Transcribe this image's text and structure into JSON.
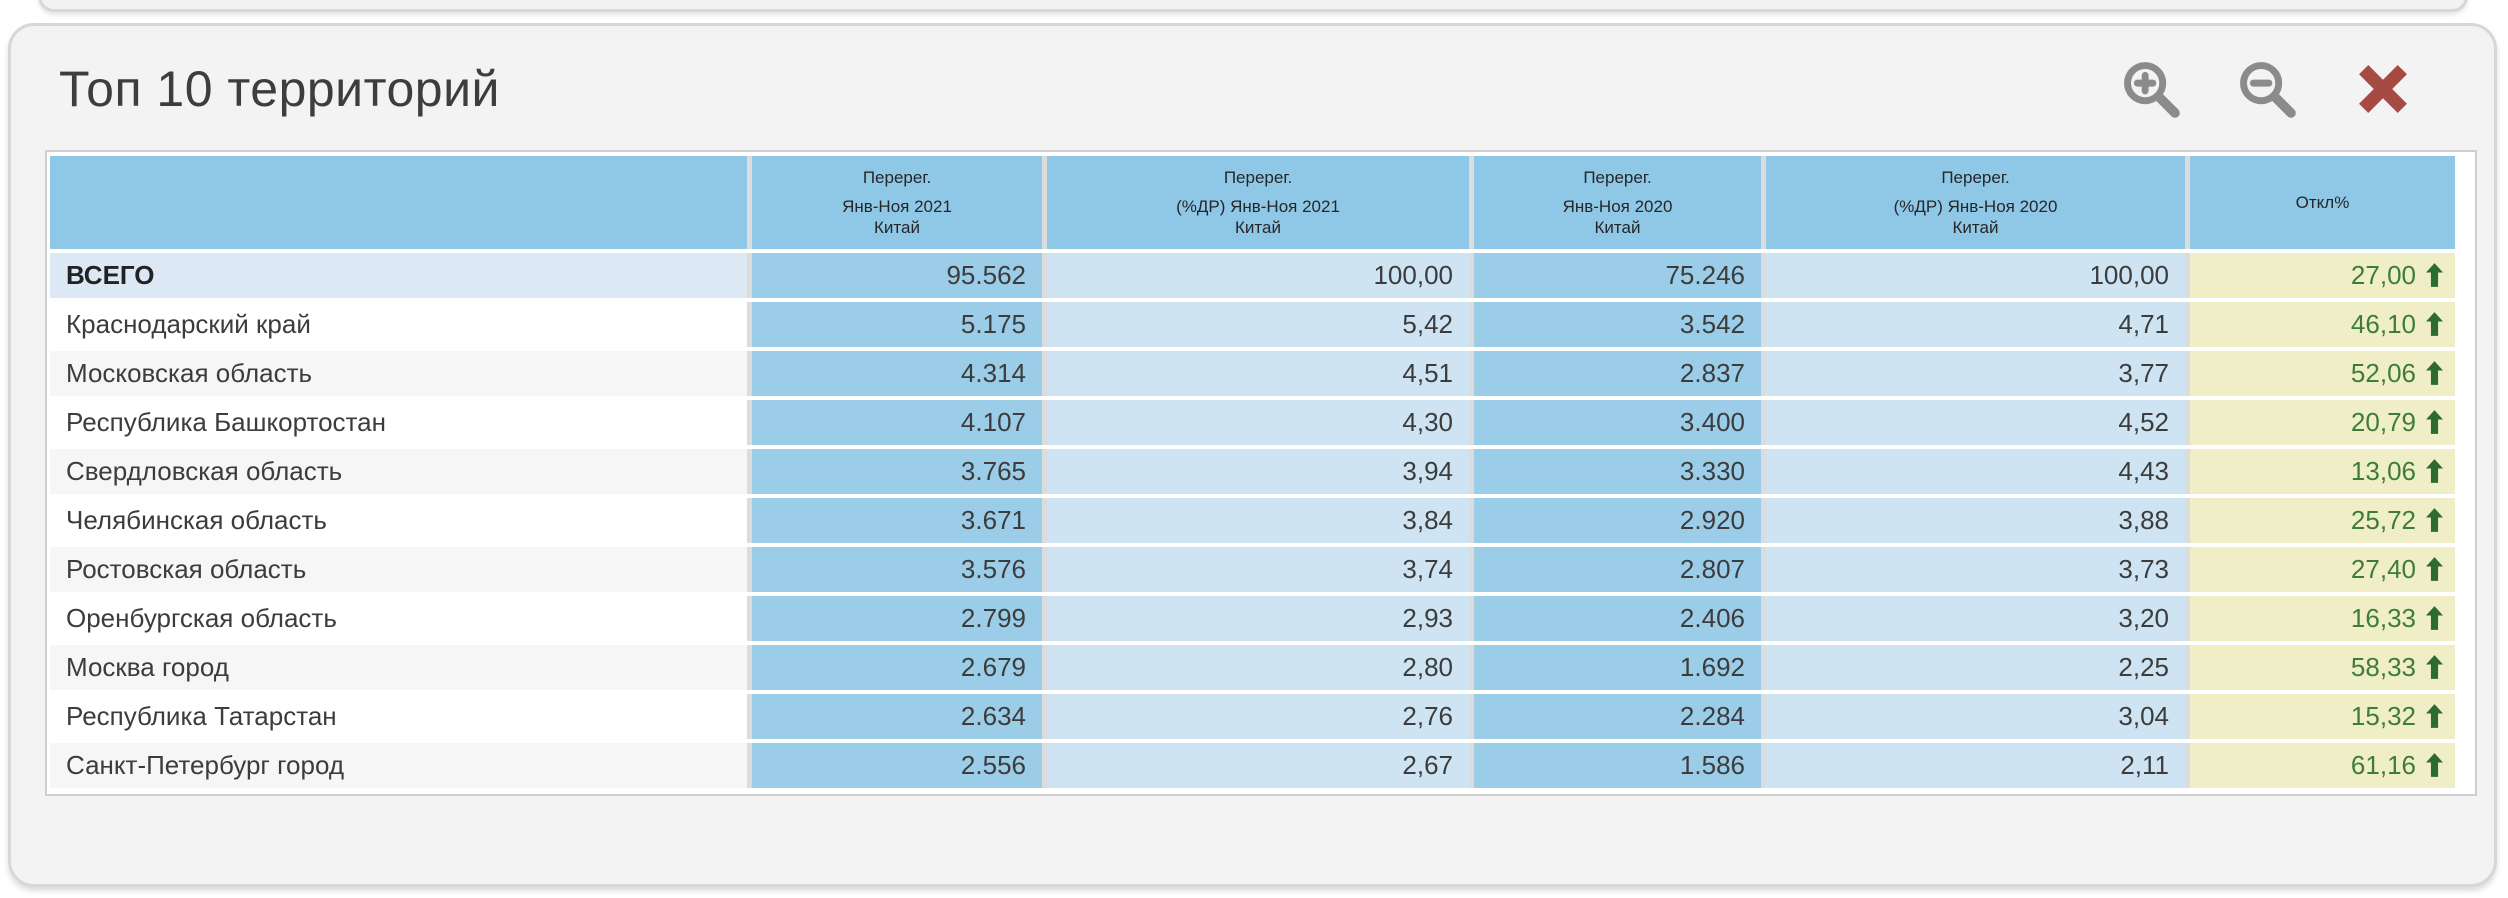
{
  "panel": {
    "title": "Топ 10 территорий",
    "toolbar": {
      "zoom_in_icon": "magnifier-plus",
      "zoom_out_icon": "magnifier-minus",
      "close_icon": "red-cross"
    }
  },
  "colors": {
    "header_blue": "#8fc8e7",
    "value_blue": "#9bcde9",
    "percent_blue": "#cfe4f3",
    "total_name_bg": "#dce9f5",
    "deviation_bg": "#f0eec6",
    "deviation_text": "#3e7c3e",
    "arrow_green": "#2e6b2e",
    "close_red": "#a64b44",
    "icon_gray": "#8b8b8b"
  },
  "table": {
    "headers": [
      {
        "top": "",
        "sub": ""
      },
      {
        "top": "Перерег.",
        "sub": "Янв-Ноя 2021\nКитай"
      },
      {
        "top": "Перерег.",
        "sub": "(%ДР) Янв-Ноя 2021\nКитай"
      },
      {
        "top": "Перерег.",
        "sub": "Янв-Ноя 2020\nКитай"
      },
      {
        "top": "Перерег.",
        "sub": "(%ДР) Янв-Ноя 2020\nКитай"
      },
      {
        "top": "",
        "sub": "Откл%"
      }
    ],
    "rows": [
      {
        "name": "ВСЕГО",
        "total": true,
        "values": [
          "95.562",
          "100,00",
          "75.246",
          "100,00"
        ],
        "deviation": "27,00",
        "trend": "up"
      },
      {
        "name": "Краснодарский край",
        "values": [
          "5.175",
          "5,42",
          "3.542",
          "4,71"
        ],
        "deviation": "46,10",
        "trend": "up"
      },
      {
        "name": "Московская область",
        "values": [
          "4.314",
          "4,51",
          "2.837",
          "3,77"
        ],
        "deviation": "52,06",
        "trend": "up"
      },
      {
        "name": "Республика Башкортостан",
        "values": [
          "4.107",
          "4,30",
          "3.400",
          "4,52"
        ],
        "deviation": "20,79",
        "trend": "up"
      },
      {
        "name": "Свердловская область",
        "values": [
          "3.765",
          "3,94",
          "3.330",
          "4,43"
        ],
        "deviation": "13,06",
        "trend": "up"
      },
      {
        "name": "Челябинская область",
        "values": [
          "3.671",
          "3,84",
          "2.920",
          "3,88"
        ],
        "deviation": "25,72",
        "trend": "up"
      },
      {
        "name": "Ростовская область",
        "values": [
          "3.576",
          "3,74",
          "2.807",
          "3,73"
        ],
        "deviation": "27,40",
        "trend": "up"
      },
      {
        "name": "Оренбургская область",
        "values": [
          "2.799",
          "2,93",
          "2.406",
          "3,20"
        ],
        "deviation": "16,33",
        "trend": "up"
      },
      {
        "name": "Москва город",
        "values": [
          "2.679",
          "2,80",
          "1.692",
          "2,25"
        ],
        "deviation": "58,33",
        "trend": "up"
      },
      {
        "name": "Республика Татарстан",
        "values": [
          "2.634",
          "2,76",
          "2.284",
          "3,04"
        ],
        "deviation": "15,32",
        "trend": "up"
      },
      {
        "name": "Санкт-Петербург город",
        "values": [
          "2.556",
          "2,67",
          "1.586",
          "2,11"
        ],
        "deviation": "61,16",
        "trend": "up"
      }
    ]
  }
}
